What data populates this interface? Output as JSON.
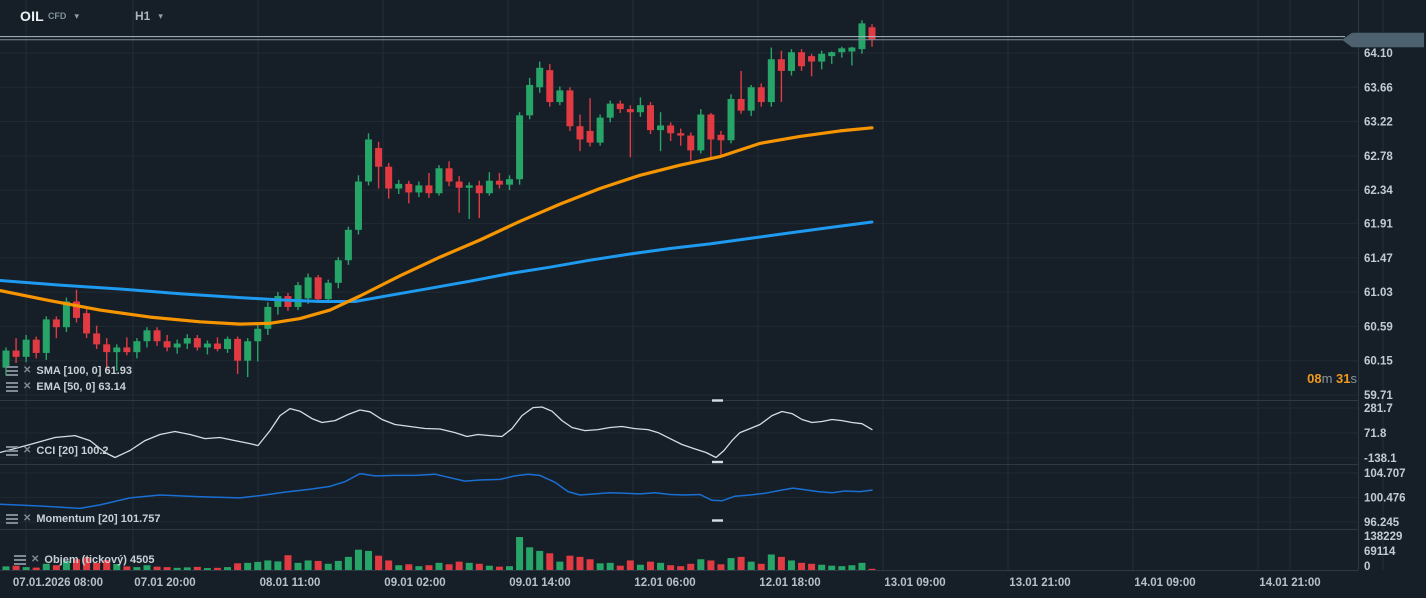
{
  "header": {
    "symbol": "OIL",
    "instrument_type": "CFD",
    "timeframe": "H1"
  },
  "legends": {
    "sma": "SMA [100, 0] 61.93",
    "ema": "EMA [50, 0] 63.14",
    "cci": "CCI [20] 100.2",
    "momentum": "Momentum [20] 101.757",
    "volume": "Objem (tickový) 4505"
  },
  "icons": {
    "settings": "sliders-icon",
    "remove": "close-icon",
    "dropdown": "▾",
    "close_glyph": "✕"
  },
  "timer": {
    "minutes": "08",
    "minutes_unit": "m",
    "seconds": "31",
    "seconds_unit": "s"
  },
  "colors": {
    "background": "#161f27",
    "grid": "#232e37",
    "separator": "#2e3a43",
    "bull": "#27a569",
    "bear": "#e23a43",
    "sma": "#1e9af0",
    "ema": "#f79500",
    "cci_line": "#d4dde2",
    "momentum_line": "#1a6fd4",
    "axis_text": "#c2cbd2",
    "time_text": "#b6c0c7",
    "price_tag_bg": "#4d626e",
    "price_tag_text": "#ffffff",
    "timer_accent": "#ef9a1d",
    "price_line": "#aebcc6"
  },
  "chart_data": {
    "type": "candlestick",
    "symbol": "OIL CFD",
    "timeframe": "H1",
    "current_price": 64.27,
    "ask_line": 64.31,
    "bid_line": 64.27,
    "price_tag": "64.27",
    "ylim": [
      59.6,
      64.78
    ],
    "price_axis_labels": [
      64.1,
      63.66,
      63.22,
      62.78,
      62.34,
      61.91,
      61.47,
      61.03,
      60.59,
      60.15,
      59.71
    ],
    "cci_axis_labels": [
      281.7,
      71.8,
      -138.1
    ],
    "momentum_axis_labels": [
      104.707,
      100.476,
      96.245
    ],
    "volume_axis_labels": [
      138229,
      69114,
      0
    ],
    "time_axis_labels": [
      "07.01.2026  08:00",
      "07.01  20:00",
      "08.01  11:00",
      "09.01  02:00",
      "09.01  14:00",
      "12.01  06:00",
      "12.01  18:00",
      "13.01  09:00",
      "13.01  21:00",
      "14.01  09:00",
      "14.01  21:00"
    ],
    "candles": [
      [
        60.06,
        60.32,
        59.96,
        60.28
      ],
      [
        60.28,
        60.44,
        60.12,
        60.2
      ],
      [
        60.2,
        60.48,
        60.13,
        60.42
      ],
      [
        60.42,
        60.46,
        60.18,
        60.25
      ],
      [
        60.25,
        60.72,
        60.16,
        60.68
      ],
      [
        60.68,
        60.72,
        60.44,
        60.58
      ],
      [
        60.58,
        60.96,
        60.52,
        60.91
      ],
      [
        60.91,
        61.06,
        60.64,
        60.7
      ],
      [
        60.76,
        60.84,
        60.44,
        60.5
      ],
      [
        60.5,
        60.6,
        60.3,
        60.36
      ],
      [
        60.36,
        60.44,
        60.04,
        60.26
      ],
      [
        60.26,
        60.36,
        60.02,
        60.32
      ],
      [
        60.32,
        60.45,
        60.22,
        60.26
      ],
      [
        60.26,
        60.44,
        60.18,
        60.4
      ],
      [
        60.4,
        60.58,
        60.32,
        60.54
      ],
      [
        60.54,
        60.58,
        60.34,
        60.4
      ],
      [
        60.4,
        60.48,
        60.27,
        60.32
      ],
      [
        60.32,
        60.42,
        60.24,
        60.37
      ],
      [
        60.37,
        60.49,
        60.3,
        60.44
      ],
      [
        60.44,
        60.48,
        60.28,
        60.32
      ],
      [
        60.32,
        60.41,
        60.23,
        60.37
      ],
      [
        60.37,
        60.45,
        60.27,
        60.3
      ],
      [
        60.3,
        60.46,
        60.25,
        60.43
      ],
      [
        60.43,
        60.46,
        59.98,
        60.15
      ],
      [
        60.15,
        60.44,
        59.94,
        60.4
      ],
      [
        60.4,
        60.62,
        60.14,
        60.56
      ],
      [
        60.56,
        60.9,
        60.48,
        60.84
      ],
      [
        60.84,
        61.03,
        60.74,
        60.98
      ],
      [
        60.98,
        61.02,
        60.79,
        60.84
      ],
      [
        60.84,
        61.16,
        60.8,
        61.12
      ],
      [
        60.95,
        61.27,
        60.88,
        61.22
      ],
      [
        61.22,
        61.25,
        60.89,
        60.94
      ],
      [
        60.94,
        61.19,
        60.89,
        61.15
      ],
      [
        61.15,
        61.48,
        61.08,
        61.44
      ],
      [
        61.44,
        61.87,
        61.38,
        61.83
      ],
      [
        61.83,
        62.53,
        61.77,
        62.45
      ],
      [
        62.45,
        63.07,
        62.4,
        62.99
      ],
      [
        62.88,
        62.96,
        62.36,
        62.64
      ],
      [
        62.64,
        62.69,
        62.23,
        62.36
      ],
      [
        62.36,
        62.47,
        62.29,
        62.42
      ],
      [
        62.42,
        62.46,
        62.17,
        62.31
      ],
      [
        62.31,
        62.45,
        62.25,
        62.4
      ],
      [
        62.4,
        62.56,
        62.24,
        62.3
      ],
      [
        62.3,
        62.66,
        62.27,
        62.62
      ],
      [
        62.62,
        62.71,
        62.39,
        62.45
      ],
      [
        62.45,
        62.52,
        62.05,
        62.37
      ],
      [
        62.37,
        62.44,
        61.97,
        62.4
      ],
      [
        62.4,
        62.46,
        61.98,
        62.3
      ],
      [
        62.3,
        62.57,
        62.27,
        62.46
      ],
      [
        62.46,
        62.56,
        62.36,
        62.41
      ],
      [
        62.41,
        62.53,
        62.34,
        62.48
      ],
      [
        62.48,
        63.34,
        62.41,
        63.3
      ],
      [
        63.3,
        63.78,
        63.25,
        63.69
      ],
      [
        63.66,
        63.99,
        63.59,
        63.91
      ],
      [
        63.88,
        63.96,
        63.41,
        63.47
      ],
      [
        63.47,
        63.67,
        63.43,
        63.62
      ],
      [
        63.62,
        63.66,
        63.1,
        63.16
      ],
      [
        63.16,
        63.31,
        62.84,
        62.99
      ],
      [
        63.1,
        63.52,
        62.9,
        62.95
      ],
      [
        62.95,
        63.31,
        62.91,
        63.27
      ],
      [
        63.27,
        63.49,
        63.21,
        63.45
      ],
      [
        63.45,
        63.49,
        63.33,
        63.38
      ],
      [
        63.38,
        63.43,
        62.76,
        63.34
      ],
      [
        63.34,
        63.53,
        63.28,
        63.43
      ],
      [
        63.43,
        63.47,
        63.06,
        63.11
      ],
      [
        63.11,
        63.34,
        62.84,
        63.17
      ],
      [
        63.17,
        63.21,
        62.97,
        63.07
      ],
      [
        63.07,
        63.13,
        62.91,
        63.04
      ],
      [
        63.04,
        63.08,
        62.72,
        62.85
      ],
      [
        62.85,
        63.38,
        62.81,
        63.31
      ],
      [
        63.31,
        63.33,
        62.75,
        62.99
      ],
      [
        63.05,
        63.1,
        62.78,
        62.98
      ],
      [
        62.98,
        63.57,
        62.94,
        63.51
      ],
      [
        63.51,
        63.87,
        63.32,
        63.36
      ],
      [
        63.36,
        63.69,
        63.29,
        63.66
      ],
      [
        63.66,
        63.71,
        63.41,
        63.47
      ],
      [
        63.47,
        64.17,
        63.41,
        64.02
      ],
      [
        64.02,
        64.13,
        63.47,
        63.87
      ],
      [
        63.87,
        64.15,
        63.81,
        64.11
      ],
      [
        64.11,
        64.15,
        63.87,
        63.93
      ],
      [
        64.06,
        64.09,
        63.8,
        63.99
      ],
      [
        63.99,
        64.13,
        63.89,
        64.09
      ],
      [
        64.06,
        64.12,
        63.96,
        64.11
      ],
      [
        64.11,
        64.18,
        64.04,
        64.16
      ],
      [
        64.12,
        64.18,
        63.94,
        64.17
      ],
      [
        64.15,
        64.52,
        64.09,
        64.48
      ],
      [
        64.43,
        64.47,
        64.18,
        64.27
      ]
    ],
    "volumes": [
      15000,
      18000,
      12000,
      10000,
      26000,
      20000,
      38000,
      45000,
      52000,
      30000,
      42000,
      25000,
      15000,
      12000,
      20000,
      14000,
      12000,
      9000,
      11000,
      13000,
      8000,
      9000,
      12000,
      28000,
      30000,
      34000,
      40000,
      36000,
      62000,
      30000,
      40000,
      38000,
      26000,
      38000,
      55000,
      85000,
      80000,
      60000,
      40000,
      20000,
      24000,
      16000,
      20000,
      30000,
      24000,
      35000,
      30000,
      26000,
      18000,
      14000,
      16000,
      138229,
      95000,
      80000,
      70000,
      35000,
      60000,
      55000,
      45000,
      28000,
      30000,
      18000,
      40000,
      22000,
      35000,
      30000,
      20000,
      16000,
      26000,
      45000,
      40000,
      24000,
      50000,
      55000,
      35000,
      26000,
      65000,
      55000,
      40000,
      30000,
      26000,
      22000,
      18000,
      16000,
      20000,
      30000,
      4505
    ],
    "sma_100": [
      [
        0,
        61.18
      ],
      [
        60,
        61.12
      ],
      [
        120,
        61.07
      ],
      [
        180,
        61.01
      ],
      [
        240,
        60.96
      ],
      [
        280,
        60.93
      ],
      [
        320,
        60.91
      ],
      [
        355,
        60.91
      ],
      [
        390,
        60.99
      ],
      [
        430,
        61.08
      ],
      [
        470,
        61.17
      ],
      [
        510,
        61.27
      ],
      [
        550,
        61.35
      ],
      [
        590,
        61.44
      ],
      [
        630,
        61.52
      ],
      [
        670,
        61.59
      ],
      [
        710,
        61.65
      ],
      [
        750,
        61.72
      ],
      [
        790,
        61.79
      ],
      [
        830,
        61.86
      ],
      [
        872,
        61.93
      ]
    ],
    "ema_50": [
      [
        0,
        61.05
      ],
      [
        50,
        60.92
      ],
      [
        100,
        60.8
      ],
      [
        150,
        60.71
      ],
      [
        200,
        60.65
      ],
      [
        240,
        60.62
      ],
      [
        270,
        60.63
      ],
      [
        300,
        60.69
      ],
      [
        330,
        60.8
      ],
      [
        360,
        60.98
      ],
      [
        400,
        61.24
      ],
      [
        440,
        61.48
      ],
      [
        480,
        61.7
      ],
      [
        520,
        61.94
      ],
      [
        560,
        62.16
      ],
      [
        600,
        62.36
      ],
      [
        640,
        62.53
      ],
      [
        680,
        62.66
      ],
      [
        720,
        62.77
      ],
      [
        760,
        62.94
      ],
      [
        800,
        63.03
      ],
      [
        840,
        63.1
      ],
      [
        872,
        63.14
      ]
    ],
    "cci_20": [
      [
        0,
        -92
      ],
      [
        30,
        -25
      ],
      [
        55,
        34
      ],
      [
        75,
        50
      ],
      [
        90,
        8
      ],
      [
        105,
        -92
      ],
      [
        115,
        -134
      ],
      [
        130,
        -75
      ],
      [
        145,
        8
      ],
      [
        160,
        59
      ],
      [
        175,
        84
      ],
      [
        190,
        59
      ],
      [
        205,
        25
      ],
      [
        220,
        34
      ],
      [
        235,
        8
      ],
      [
        250,
        -17
      ],
      [
        258,
        -34
      ],
      [
        270,
        92
      ],
      [
        280,
        218
      ],
      [
        290,
        277
      ],
      [
        300,
        255
      ],
      [
        312,
        193
      ],
      [
        322,
        160
      ],
      [
        335,
        176
      ],
      [
        348,
        227
      ],
      [
        360,
        265
      ],
      [
        370,
        250
      ],
      [
        382,
        185
      ],
      [
        395,
        143
      ],
      [
        410,
        126
      ],
      [
        425,
        110
      ],
      [
        440,
        105
      ],
      [
        455,
        75
      ],
      [
        467,
        42
      ],
      [
        478,
        59
      ],
      [
        490,
        50
      ],
      [
        502,
        42
      ],
      [
        512,
        109
      ],
      [
        522,
        218
      ],
      [
        533,
        285
      ],
      [
        542,
        290
      ],
      [
        552,
        255
      ],
      [
        562,
        176
      ],
      [
        572,
        118
      ],
      [
        585,
        92
      ],
      [
        598,
        100
      ],
      [
        610,
        118
      ],
      [
        622,
        126
      ],
      [
        635,
        109
      ],
      [
        648,
        100
      ],
      [
        658,
        75
      ],
      [
        670,
        25
      ],
      [
        682,
        -25
      ],
      [
        694,
        -59
      ],
      [
        706,
        -92
      ],
      [
        716,
        -134
      ],
      [
        724,
        -75
      ],
      [
        732,
        8
      ],
      [
        740,
        75
      ],
      [
        750,
        109
      ],
      [
        760,
        143
      ],
      [
        772,
        218
      ],
      [
        782,
        252
      ],
      [
        792,
        235
      ],
      [
        802,
        185
      ],
      [
        812,
        160
      ],
      [
        822,
        168
      ],
      [
        832,
        185
      ],
      [
        842,
        176
      ],
      [
        852,
        160
      ],
      [
        862,
        150
      ],
      [
        872,
        100.2
      ]
    ],
    "momentum_20": [
      [
        0,
        99.3
      ],
      [
        40,
        99.0
      ],
      [
        80,
        98.6
      ],
      [
        100,
        99.2
      ],
      [
        130,
        100.4
      ],
      [
        160,
        100.9
      ],
      [
        200,
        100.6
      ],
      [
        240,
        100.4
      ],
      [
        260,
        100.8
      ],
      [
        285,
        101.4
      ],
      [
        310,
        101.9
      ],
      [
        330,
        102.4
      ],
      [
        345,
        103.2
      ],
      [
        360,
        104.6
      ],
      [
        375,
        104.2
      ],
      [
        395,
        104.3
      ],
      [
        415,
        104.3
      ],
      [
        435,
        104.5
      ],
      [
        450,
        103.9
      ],
      [
        465,
        103.3
      ],
      [
        480,
        103.5
      ],
      [
        500,
        103.6
      ],
      [
        515,
        104.2
      ],
      [
        528,
        104.5
      ],
      [
        540,
        104.3
      ],
      [
        555,
        103.1
      ],
      [
        568,
        101.5
      ],
      [
        580,
        100.9
      ],
      [
        595,
        101.1
      ],
      [
        610,
        101.3
      ],
      [
        625,
        101.2
      ],
      [
        640,
        101.1
      ],
      [
        655,
        101.3
      ],
      [
        670,
        101.0
      ],
      [
        685,
        100.9
      ],
      [
        700,
        101.0
      ],
      [
        712,
        100.0
      ],
      [
        722,
        99.9
      ],
      [
        735,
        100.7
      ],
      [
        750,
        100.9
      ],
      [
        765,
        101.2
      ],
      [
        780,
        101.7
      ],
      [
        793,
        102.1
      ],
      [
        805,
        101.8
      ],
      [
        818,
        101.5
      ],
      [
        832,
        101.3
      ],
      [
        845,
        101.6
      ],
      [
        860,
        101.5
      ],
      [
        872,
        101.757
      ]
    ]
  }
}
